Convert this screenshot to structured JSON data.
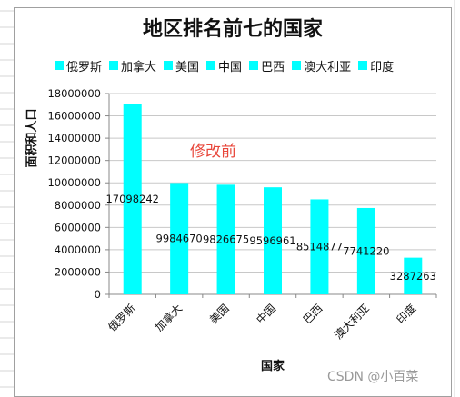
{
  "chart_data": {
    "type": "bar",
    "title": "地区排名前七的国家",
    "xlabel": "国家",
    "ylabel": "面积和人口",
    "categories": [
      "俄罗斯",
      "加拿大",
      "美国",
      "中国",
      "巴西",
      "澳大利亚",
      "印度"
    ],
    "values": [
      17098242,
      9984670,
      9826675,
      9596961,
      8514877,
      7741220,
      3287263
    ],
    "value_labels": [
      "17098242",
      "9984670",
      "9826675",
      "9596961",
      "8514877",
      "7741220",
      "3287263"
    ],
    "yticks": [
      "0",
      "2000000",
      "4000000",
      "6000000",
      "8000000",
      "10000000",
      "12000000",
      "14000000",
      "16000000",
      "18000000"
    ],
    "ylim": [
      0,
      18000000
    ],
    "grid": true,
    "legend_placement": "top",
    "bar_color": "#00ffff",
    "legend": [
      "俄罗斯",
      "加拿大",
      "美国",
      "中国",
      "巴西",
      "澳大利亚",
      "印度"
    ]
  },
  "annotation": "修改前",
  "watermark": "CSDN @小百菜",
  "colors": {
    "bar": "#00ffff",
    "annotation": "#e8463a",
    "grid": "#c8c8c8"
  }
}
